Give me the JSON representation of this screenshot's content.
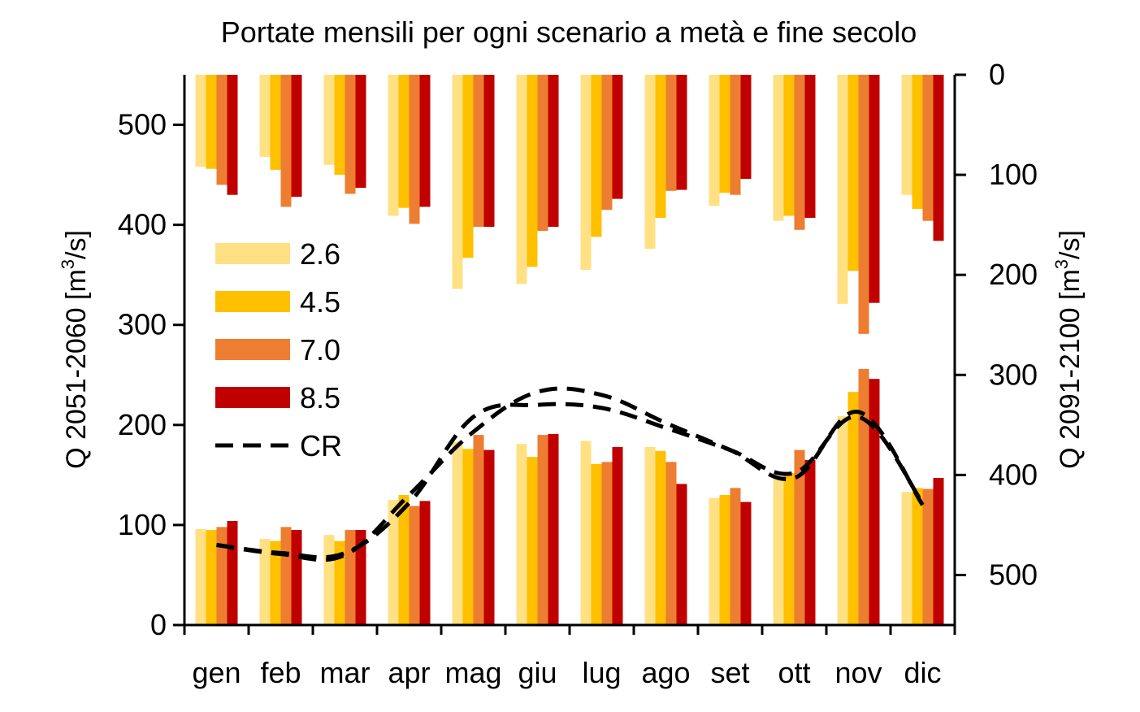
{
  "chart_data": {
    "type": "bar",
    "title": "Portate mensili per ogni scenario a metà e fine secolo",
    "categories": [
      "gen",
      "feb",
      "mar",
      "apr",
      "mag",
      "giu",
      "lug",
      "ago",
      "set",
      "ott",
      "nov",
      "dic"
    ],
    "left_axis": {
      "label_prefix": "Q 2051-2060 [m",
      "label_sup": "3",
      "label_suffix": "/s]",
      "range": [
        0,
        550
      ],
      "ticks": [
        "0",
        "100",
        "200",
        "300",
        "400",
        "500"
      ]
    },
    "right_axis": {
      "label_prefix": "Q 2091-2100 [m",
      "label_sup": "3",
      "label_suffix": "/s]",
      "range": [
        0,
        550
      ],
      "inverted": true,
      "ticks": [
        "0",
        "100",
        "200",
        "300",
        "400",
        "500"
      ]
    },
    "mid_century": {
      "axis": "left",
      "series": [
        {
          "name": "2.6",
          "color": "#FFE083",
          "values": [
            96,
            86,
            90,
            125,
            183,
            181,
            184,
            178,
            127,
            147,
            209,
            133
          ]
        },
        {
          "name": "4.5",
          "color": "#FFC000",
          "values": [
            95,
            84,
            84,
            130,
            176,
            168,
            161,
            174,
            130,
            152,
            233,
            137
          ]
        },
        {
          "name": "7.0",
          "color": "#ED7D31",
          "values": [
            98,
            98,
            95,
            119,
            190,
            190,
            163,
            163,
            137,
            175,
            256,
            136
          ]
        },
        {
          "name": "8.5",
          "color": "#C00000",
          "values": [
            104,
            95,
            95,
            124,
            175,
            191,
            178,
            141,
            123,
            165,
            246,
            147
          ]
        }
      ],
      "cr": [
        80,
        71,
        70,
        130,
        193,
        233,
        230,
        202,
        175,
        147,
        213,
        120
      ]
    },
    "end_century": {
      "axis": "right",
      "series": [
        {
          "name": "2.6",
          "color": "#FFE083",
          "values": [
            92,
            82,
            90,
            141,
            214,
            209,
            195,
            174,
            131,
            146,
            229,
            120
          ]
        },
        {
          "name": "4.5",
          "color": "#FFC000",
          "values": [
            94,
            95,
            100,
            133,
            183,
            192,
            162,
            143,
            118,
            141,
            196,
            134
          ]
        },
        {
          "name": "7.0",
          "color": "#ED7D31",
          "values": [
            110,
            132,
            119,
            149,
            152,
            156,
            135,
            116,
            120,
            155,
            259,
            146
          ]
        },
        {
          "name": "8.5",
          "color": "#C00000",
          "values": [
            120,
            122,
            113,
            132,
            152,
            152,
            124,
            115,
            104,
            143,
            228,
            166
          ]
        }
      ],
      "cr": [
        470,
        478,
        478,
        428,
        342,
        330,
        333,
        353,
        375,
        398,
        342,
        428
      ]
    },
    "legend": {
      "position": "left",
      "entries": [
        {
          "label": "2.6",
          "color": "#FFE083",
          "kind": "bar"
        },
        {
          "label": "4.5",
          "color": "#FFC000",
          "kind": "bar"
        },
        {
          "label": "7.0",
          "color": "#ED7D31",
          "kind": "bar"
        },
        {
          "label": "8.5",
          "color": "#C00000",
          "kind": "bar"
        },
        {
          "label": "CR",
          "color": "#000000",
          "kind": "dashed-line"
        }
      ]
    }
  }
}
